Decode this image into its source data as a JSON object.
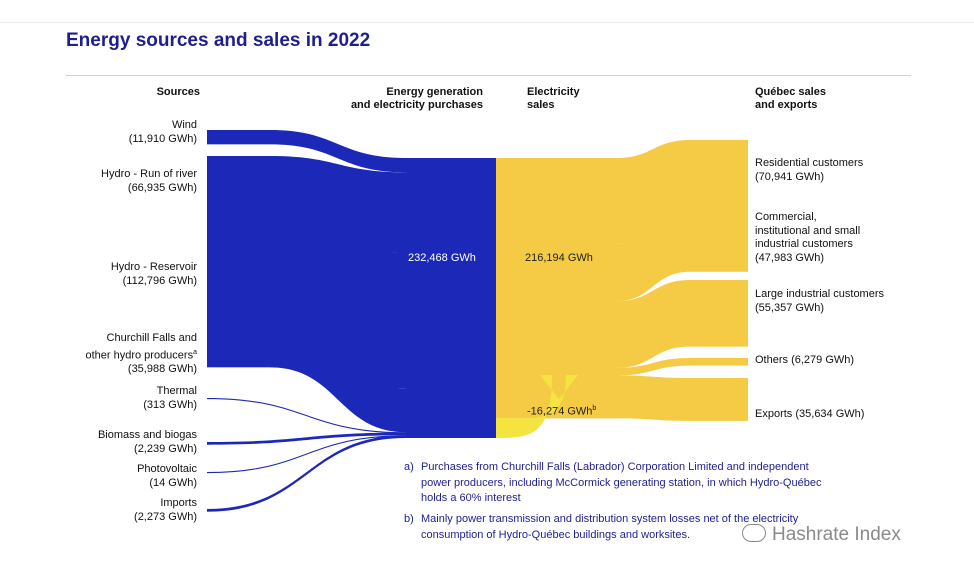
{
  "title": "Energy sources and sales in 2022",
  "headers": {
    "sources": "Sources",
    "generation_l1": "Energy generation",
    "generation_l2": "and electricity purchases",
    "sales_l1": "Electricity",
    "sales_l2": "sales",
    "quebec_l1": "Québec sales",
    "quebec_l2": "and exports"
  },
  "colors": {
    "blue": "#1c29b8",
    "yellow": "#f5cb45",
    "loss_yellow": "#f4e43f",
    "text_blue": "#1e1f8f"
  },
  "chart_data": {
    "type": "sankey",
    "title": "Energy sources and sales in 2022",
    "unit": "GWh",
    "sources": [
      {
        "label": "Wind",
        "value_text": "(11,910 GWh)",
        "value": 11910
      },
      {
        "label": "Hydro - Run of river",
        "value_text": "(66,935 GWh)",
        "value": 66935
      },
      {
        "label": "Hydro - Reservoir",
        "value_text": "(112,796 GWh)",
        "value": 112796
      },
      {
        "label_l1": "Churchill Falls and",
        "label_l2": "other hydro producers",
        "sup": "a",
        "value_text": "(35,988 GWh)",
        "value": 35988
      },
      {
        "label": "Thermal",
        "value_text": "(313 GWh)",
        "value": 313
      },
      {
        "label": "Biomass and biogas",
        "value_text": "(2,239 GWh)",
        "value": 2239
      },
      {
        "label": "Photovoltaic",
        "value_text": "(14 GWh)",
        "value": 14
      },
      {
        "label": "Imports",
        "value_text": "(2,273 GWh)",
        "value": 2273
      }
    ],
    "generation_total": {
      "value": 232468,
      "text": "232,468 GWh"
    },
    "sales_total": {
      "value": 216194,
      "text": "216,194 GWh"
    },
    "losses": {
      "value": -16274,
      "text": "-16,274 GWh",
      "sup": "b"
    },
    "destinations": [
      {
        "label": "Residential customers",
        "value_text": "(70,941 GWh)",
        "value": 70941
      },
      {
        "label_l1": "Commercial,",
        "label_l2": "institutional and small",
        "label_l3": "industrial customers",
        "value_text": "(47,983 GWh)",
        "value": 47983
      },
      {
        "label": "Large industrial customers",
        "value_text": "(55,357 GWh)",
        "value": 55357
      },
      {
        "label": "Others",
        "value_text": "(6,279 GWh)",
        "value": 6279
      },
      {
        "label": "Exports",
        "value_text": "(35,634 GWh)",
        "value": 35634
      }
    ]
  },
  "notes": [
    {
      "letter": "a)",
      "line1": "Purchases from Churchill Falls (Labrador) Corporation Limited and independent",
      "line2": "power producers, including McCormick generating station, in which Hydro-Québec",
      "line3": "holds a 60% interest"
    },
    {
      "letter": "b)",
      "line1": "Mainly power transmission and distribution system losses net of the electricity",
      "line2": "consumption of Hydro-Québec buildings and worksites."
    }
  ],
  "watermark": "Hashrate Index"
}
